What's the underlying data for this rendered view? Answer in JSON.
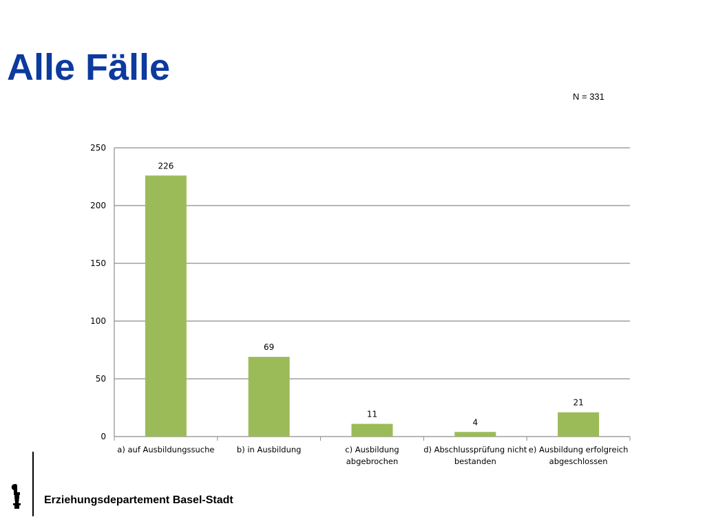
{
  "slide": {
    "title": "Alle Fälle",
    "sample_size": "N = 331"
  },
  "chart_data": {
    "type": "bar",
    "categories": [
      [
        "a) auf Ausbildungssuche"
      ],
      [
        "b) in Ausbildung"
      ],
      [
        "c) Ausbildung",
        "abgebrochen"
      ],
      [
        "d) Abschlussprüfung nicht",
        "bestanden"
      ],
      [
        "e) Ausbildung erfolgreich",
        "abgeschlossen"
      ]
    ],
    "values": [
      226,
      69,
      11,
      4,
      21
    ],
    "ylim": [
      0,
      250
    ],
    "yticks": [
      0,
      50,
      100,
      150,
      200,
      250
    ],
    "grid": true,
    "data_labels": true,
    "colors": {
      "bar": "#9bbb59",
      "grid": "#8c8c8c",
      "axis": "#8c8c8c"
    }
  },
  "footer": {
    "organization": "Erziehungsdepartement Basel-Stadt",
    "logo_icon": "basel-staff-icon"
  }
}
